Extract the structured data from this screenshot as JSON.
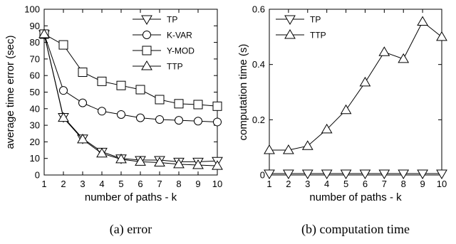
{
  "chart_data": [
    {
      "type": "line",
      "caption": "(a) error",
      "xlabel": "number of paths - k",
      "ylabel": "average time error (sec)",
      "x": [
        1,
        2,
        3,
        4,
        5,
        6,
        7,
        8,
        9,
        10
      ],
      "xlim": [
        1,
        10
      ],
      "ylim": [
        0,
        100
      ],
      "yticks": [
        0,
        10,
        20,
        30,
        40,
        50,
        60,
        70,
        80,
        90,
        100
      ],
      "legend_position": "top-right",
      "grid": false,
      "series": [
        {
          "name": "TP",
          "marker": "triangle-down",
          "values": [
            85,
            35,
            22,
            14,
            10,
            9,
            9,
            8,
            8,
            8.5
          ]
        },
        {
          "name": "K-VAR",
          "marker": "circle",
          "values": [
            85,
            51,
            43.5,
            38.5,
            36.5,
            34.5,
            33.5,
            33,
            32.5,
            32
          ]
        },
        {
          "name": "Y-MOD",
          "marker": "square",
          "values": [
            85,
            78.5,
            62,
            56.5,
            54,
            51.5,
            45.5,
            43,
            42.5,
            41.5
          ]
        },
        {
          "name": "TTP",
          "marker": "triangle-up",
          "values": [
            85,
            34.5,
            21.5,
            13,
            9.5,
            8,
            7.5,
            6.5,
            6,
            5.5
          ]
        }
      ]
    },
    {
      "type": "line",
      "caption": "(b) computation time",
      "xlabel": "number of paths - k",
      "ylabel": "computation time (s)",
      "x": [
        1,
        2,
        3,
        4,
        5,
        6,
        7,
        8,
        9,
        10
      ],
      "xlim": [
        1,
        10
      ],
      "ylim": [
        0,
        0.6
      ],
      "yticks": [
        0,
        0.2,
        0.4,
        0.6
      ],
      "legend_position": "top-left",
      "grid": false,
      "series": [
        {
          "name": "TP",
          "marker": "triangle-down",
          "values": [
            0.005,
            0.005,
            0.005,
            0.005,
            0.005,
            0.005,
            0.005,
            0.005,
            0.005,
            0.005
          ]
        },
        {
          "name": "TTP",
          "marker": "triangle-up",
          "values": [
            0.09,
            0.09,
            0.105,
            0.165,
            0.235,
            0.335,
            0.445,
            0.42,
            0.555,
            0.5
          ]
        }
      ]
    }
  ]
}
